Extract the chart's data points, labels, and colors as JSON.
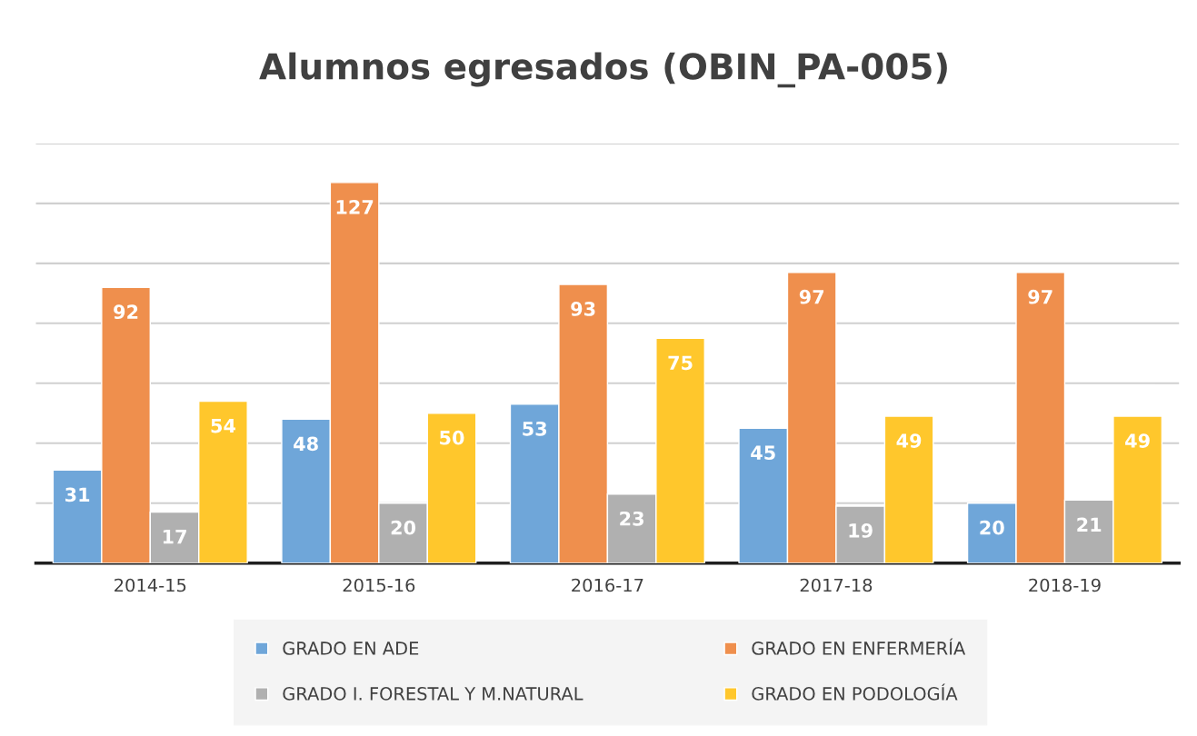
{
  "chart_data": {
    "type": "bar",
    "title": "Alumnos egresados (OBIN_PA-005)",
    "categories": [
      "2014-15",
      "2015-16",
      "2016-17",
      "2017-18",
      "2018-19"
    ],
    "series": [
      {
        "name": "GRADO EN ADE",
        "color": "#6fa6d9",
        "values": [
          31,
          48,
          53,
          45,
          20
        ]
      },
      {
        "name": "GRADO EN ENFERMERÍA",
        "color": "#ef8f4d",
        "values": [
          92,
          127,
          93,
          97,
          97
        ]
      },
      {
        "name": "GRADO I. FORESTAL Y M.NATURAL",
        "color": "#b0b0b0",
        "values": [
          17,
          20,
          23,
          19,
          21
        ]
      },
      {
        "name": "GRADO EN PODOLOGÍA",
        "color": "#ffc72c",
        "values": [
          54,
          50,
          75,
          49,
          49
        ]
      }
    ],
    "ylim": [
      0,
      140
    ],
    "yticks": [
      {
        "value": 0,
        "label": null
      },
      {
        "value": 20,
        "label": null
      },
      {
        "value": 40,
        "label": null
      },
      {
        "value": 60,
        "label": null
      },
      {
        "value": 80,
        "label": null
      },
      {
        "value": 100,
        "label": null
      },
      {
        "value": 120,
        "label": null
      },
      {
        "value": 140,
        "label": null
      }
    ],
    "tick_labels": "x",
    "grid": "y",
    "legend": "bottom",
    "data_labels": true
  }
}
